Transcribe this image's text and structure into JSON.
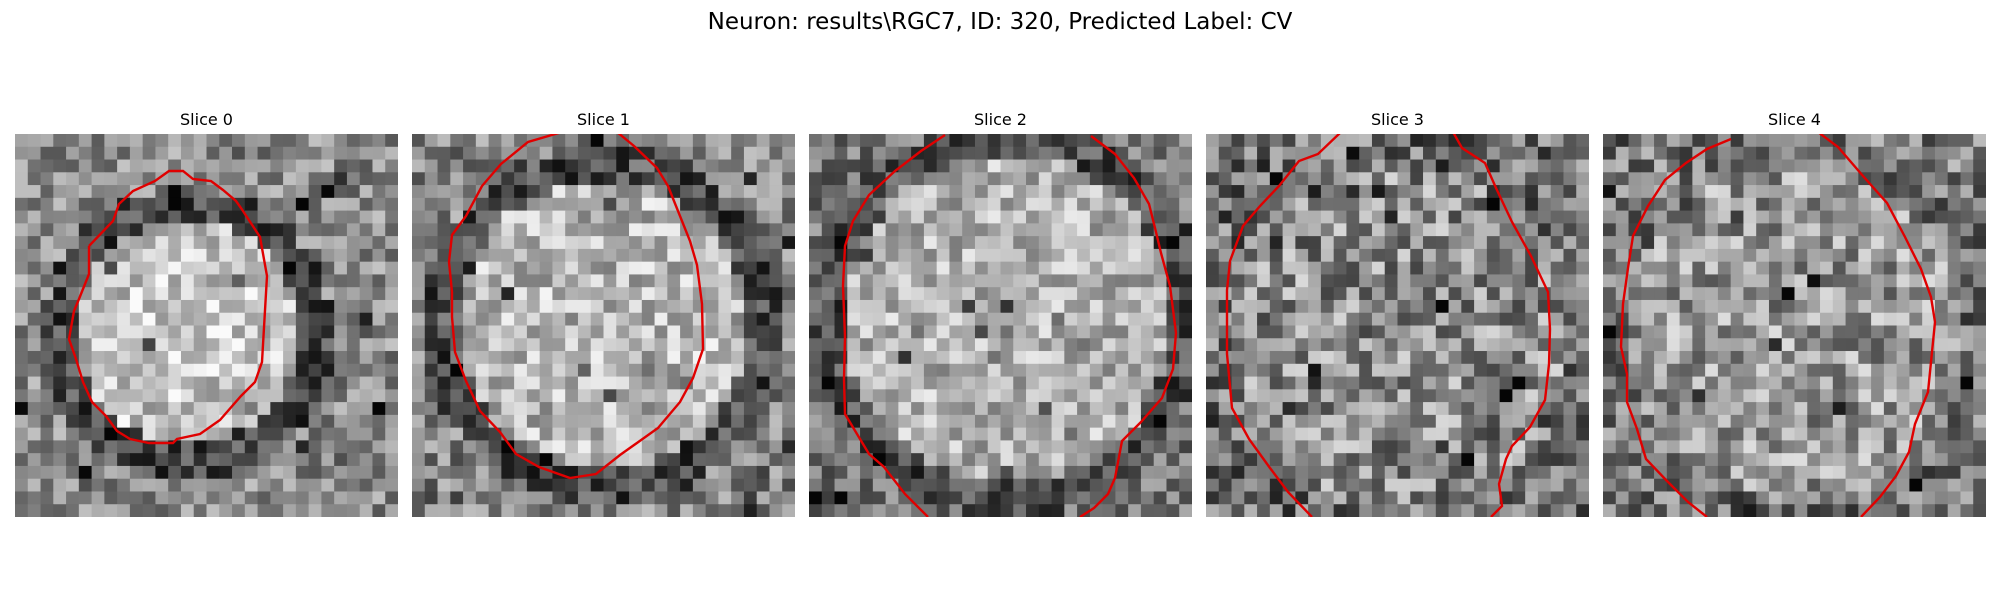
{
  "figure": {
    "title": "Neuron: results\\RGC7, ID: 320, Predicted Label: CV",
    "outline_color": "#e00000"
  },
  "slices": [
    {
      "title": "Slice 0"
    },
    {
      "title": "Slice 1"
    },
    {
      "title": "Slice 2"
    },
    {
      "title": "Slice 3"
    },
    {
      "title": "Slice 4"
    }
  ]
}
